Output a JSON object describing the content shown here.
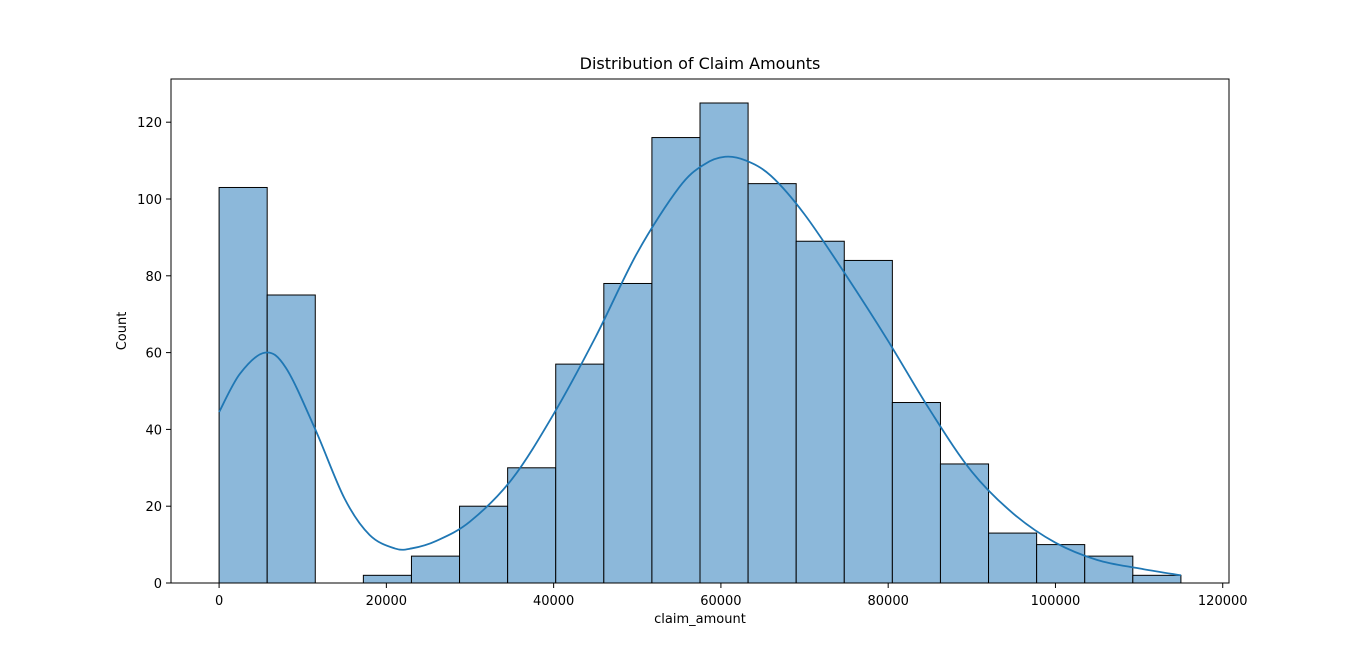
{
  "chart_data": {
    "type": "bar",
    "title": "Distribution of Claim Amounts",
    "xlabel": "claim_amount",
    "ylabel": "Count",
    "xlim": [
      -5750,
      120750
    ],
    "ylim": [
      0,
      131.25
    ],
    "x_ticks": [
      0,
      20000,
      40000,
      60000,
      80000,
      100000,
      120000
    ],
    "y_ticks": [
      0,
      20,
      40,
      60,
      80,
      100,
      120
    ],
    "bin_edges": [
      0,
      5750,
      11500,
      17250,
      23000,
      28750,
      34500,
      40250,
      46000,
      51750,
      57500,
      63250,
      69000,
      74750,
      80500,
      86250,
      92000,
      97750,
      103500,
      109250,
      115000
    ],
    "counts": [
      103,
      75,
      0,
      2,
      7,
      20,
      30,
      57,
      78,
      116,
      125,
      104,
      89,
      84,
      47,
      31,
      13,
      10,
      7,
      2
    ],
    "kde": {
      "x": [
        0,
        2500,
        5500,
        8000,
        11500,
        15000,
        18000,
        21000,
        23000,
        26000,
        30000,
        35000,
        40000,
        45000,
        50000,
        55000,
        58000,
        60500,
        63000,
        66000,
        70000,
        75000,
        80000,
        85000,
        90000,
        95000,
        100000,
        105000,
        110000,
        115000
      ],
      "y": [
        44.5,
        54.5,
        60,
        56,
        40,
        22,
        12.5,
        9,
        9,
        11,
        16,
        27,
        44,
        64,
        86,
        103,
        109,
        111,
        110,
        106,
        96,
        80,
        63,
        45,
        29,
        18,
        10.5,
        6,
        3.8,
        2
      ]
    },
    "colors": {
      "bar_fill": "#8cb8da",
      "bar_edge": "#000000",
      "kde_line": "#1f77b4",
      "axes": "#000000"
    },
    "grid": false,
    "legend": "none"
  }
}
